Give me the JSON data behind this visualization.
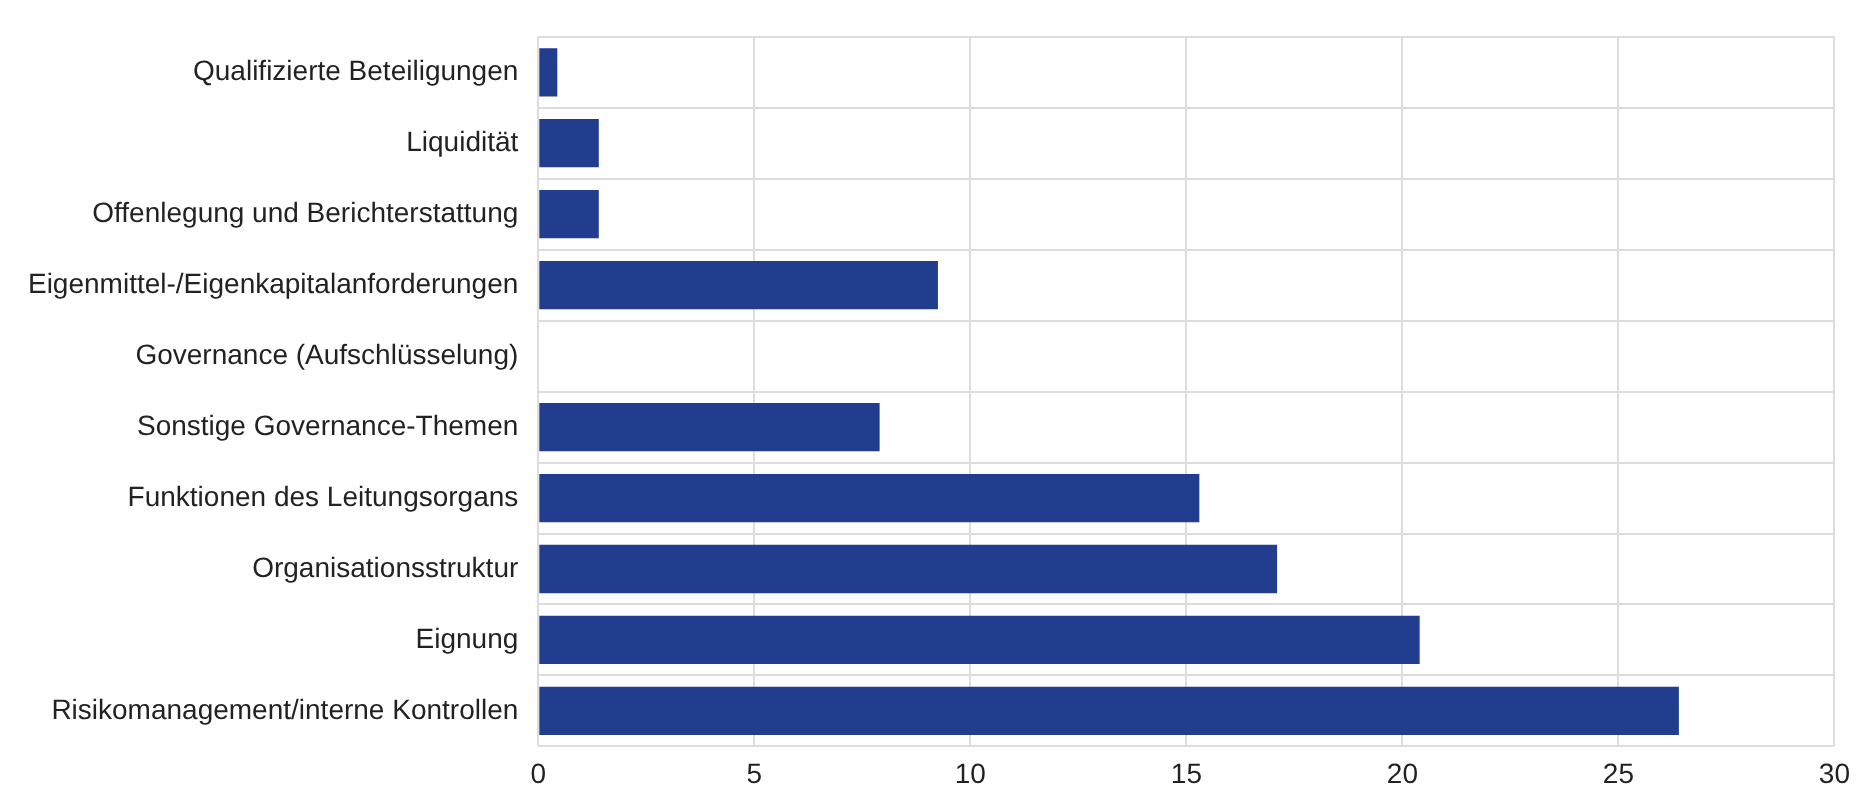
{
  "chart_data": {
    "type": "bar",
    "orientation": "horizontal",
    "categories": [
      "Qualifizierte Beteiligungen",
      "Liquidität",
      "Offenlegung und Berichterstattung",
      "Eigenmittel-/Eigenkapitalanforderungen",
      "Governance (Aufschlüsselung)",
      "Sonstige Governance-Themen",
      "Funktionen des Leitungsorgans",
      "Organisationsstruktur",
      "Eignung",
      "Risikomanagement/interne Kontrollen"
    ],
    "values": [
      0.44,
      1.4,
      1.4,
      9.25,
      null,
      7.9,
      15.3,
      17.1,
      20.4,
      26.4
    ],
    "color": "#233d8e",
    "xlim": [
      0,
      30
    ],
    "xticks": [
      0,
      5,
      10,
      15,
      20,
      25,
      30
    ],
    "grid": true,
    "legend": false
  }
}
